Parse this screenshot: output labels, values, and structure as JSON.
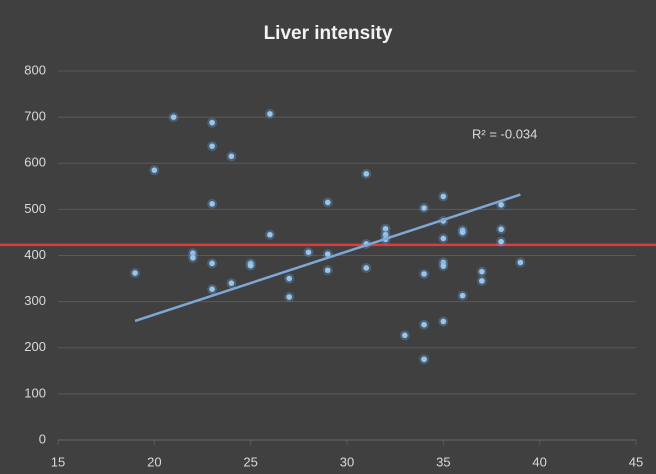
{
  "chart_data": {
    "type": "scatter",
    "title": "Liver intensity",
    "annotation": "R² = -0.034",
    "x": [
      19,
      20,
      21,
      22,
      22,
      23,
      23,
      23,
      23,
      23,
      24,
      24,
      25,
      25,
      26,
      26,
      27,
      27,
      28,
      29,
      29,
      29,
      31,
      31,
      31,
      32,
      32,
      32,
      33,
      34,
      34,
      34,
      34,
      35,
      35,
      35,
      35,
      35,
      35,
      36,
      36,
      36,
      37,
      37,
      38,
      38,
      38,
      39
    ],
    "values": [
      362,
      585,
      700,
      405,
      395,
      688,
      637,
      512,
      383,
      327,
      615,
      340,
      383,
      378,
      707,
      445,
      350,
      310,
      407,
      515,
      403,
      368,
      577,
      373,
      425,
      458,
      445,
      435,
      227,
      503,
      360,
      250,
      175,
      528,
      475,
      437,
      385,
      377,
      257,
      455,
      450,
      313,
      365,
      345,
      510,
      457,
      430,
      385
    ],
    "color": "#5b9bd5",
    "trendline": {
      "x": [
        19,
        39
      ],
      "values": [
        258,
        532
      ],
      "color": "#7fa7d6"
    },
    "reference_line": {
      "value": 423,
      "color": "#e03b3b"
    },
    "xlim": [
      15,
      45
    ],
    "xticks": [
      15,
      20,
      25,
      30,
      35,
      40,
      45
    ],
    "ylim": [
      0,
      800
    ],
    "yticks": [
      0,
      100,
      200,
      300,
      400,
      500,
      600,
      700,
      800
    ],
    "grid": true
  }
}
